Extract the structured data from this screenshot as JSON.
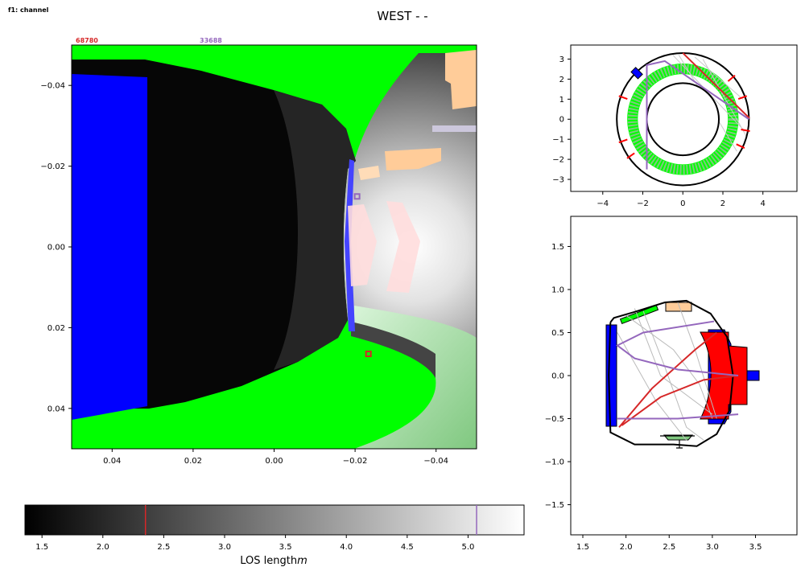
{
  "figure_label": "f1: channel",
  "title": "WEST -  -",
  "colors": {
    "red_marker": "#d62728",
    "purple_marker": "#9467bd",
    "green": "#00ff00",
    "blue": "#0000ff",
    "red": "#ff0000",
    "peach": "#ffcc99",
    "lavender": "#ccc7dc",
    "pink": "#ffdddd",
    "light_green": "#80c880"
  },
  "chart_data": [
    {
      "type": "heatmap",
      "name": "camera image",
      "corner_labels": {
        "red_pixel_index": "68780",
        "purple_pixel_index": "33688"
      },
      "xlim": [
        0.05,
        -0.05
      ],
      "ylim": [
        -0.05,
        0.05
      ],
      "x_ticks": [
        "0.04",
        "0.02",
        "0.00",
        "−0.02",
        "−0.04"
      ],
      "y_ticks": [
        "−0.04",
        "−0.02",
        "0.00",
        "0.02",
        "0.04"
      ],
      "x_tick_values": [
        0.04,
        0.02,
        0.0,
        -0.02,
        -0.04
      ],
      "y_tick_values": [
        -0.04,
        -0.02,
        0.0,
        0.02,
        0.04
      ],
      "markers": [
        {
          "pixel": "33688",
          "x": -0.0205,
          "y": -0.0125,
          "color": "#9467bd"
        },
        {
          "pixel": "68780",
          "x": -0.0233,
          "y": 0.0265,
          "color": "#d62728"
        }
      ],
      "colormap": "greys, black = short LOS, white = long LOS"
    },
    {
      "type": "colorbar",
      "xlim": [
        1.36,
        5.46
      ],
      "ticks": [
        "1.5",
        "2.0",
        "2.5",
        "3.0",
        "3.5",
        "4.0",
        "4.5",
        "5.0"
      ],
      "tick_values": [
        1.5,
        2.0,
        2.5,
        3.0,
        3.5,
        4.0,
        4.5,
        5.0
      ],
      "xlabel": "LOS length",
      "xlabel_unit": "m",
      "markers": [
        {
          "value": 2.35,
          "color": "#d62728"
        },
        {
          "value": 5.07,
          "color": "#9467bd"
        }
      ]
    },
    {
      "type": "line",
      "name": "top view (horizontal cross-section)",
      "xlim": [
        -5.6,
        5.7
      ],
      "ylim": [
        -3.6,
        3.7
      ],
      "x_ticks": [
        "−4",
        "−2",
        "0",
        "2",
        "4"
      ],
      "x_tick_values": [
        -4,
        -2,
        0,
        2,
        4
      ],
      "y_ticks": [
        "−3",
        "−2",
        "−1",
        "0",
        "1",
        "2",
        "3"
      ],
      "y_tick_values": [
        -3,
        -2,
        -1,
        0,
        1,
        2,
        3
      ],
      "vessel": {
        "r_inner": 1.8,
        "r_outer": 3.3
      },
      "green_ring": {
        "r_inner": 2.25,
        "r_outer": 2.78
      },
      "los_red": [
        [
          0.0,
          3.3
        ],
        [
          3.33,
          0.05
        ]
      ],
      "los_purple": [
        [
          -1.8,
          -2.5
        ],
        [
          -1.8,
          2.7
        ],
        [
          -0.9,
          2.9
        ],
        [
          3.3,
          0.0
        ]
      ],
      "los_gray": [
        [
          [
            -0.2,
            3.2
          ],
          [
            2.7,
            -1.6
          ]
        ],
        [
          [
            0.6,
            3.1
          ],
          [
            3.0,
            1.0
          ]
        ],
        [
          [
            -0.5,
            3.2
          ],
          [
            3.1,
            -0.6
          ]
        ],
        [
          [
            1.0,
            3.0
          ],
          [
            3.2,
            -0.9
          ]
        ]
      ],
      "camera": [
        -2.3,
        2.3
      ]
    },
    {
      "type": "line",
      "name": "poloidal cross-section",
      "xlim": [
        1.36,
        3.98
      ],
      "ylim": [
        -1.85,
        1.85
      ],
      "x_ticks": [
        "1.5",
        "2.0",
        "2.5",
        "3.0",
        "3.5"
      ],
      "x_tick_values": [
        1.5,
        2.0,
        2.5,
        3.0,
        3.5
      ],
      "y_ticks": [
        "1.5",
        "1.0",
        "0.5",
        "0.0",
        "−0.5",
        "−1.0",
        "−1.5"
      ],
      "y_tick_values": [
        1.5,
        1.0,
        0.5,
        0.0,
        -0.5,
        -1.0,
        -1.5
      ],
      "vessel": [
        [
          1.82,
          0.62
        ],
        [
          1.86,
          0.67
        ],
        [
          2.1,
          0.74
        ],
        [
          2.45,
          0.85
        ],
        [
          2.7,
          0.87
        ],
        [
          2.98,
          0.72
        ],
        [
          3.17,
          0.45
        ],
        [
          3.24,
          0.0
        ],
        [
          3.2,
          -0.4
        ],
        [
          3.05,
          -0.68
        ],
        [
          2.82,
          -0.82
        ],
        [
          2.55,
          -0.8
        ],
        [
          2.1,
          -0.8
        ],
        [
          1.94,
          -0.72
        ],
        [
          1.82,
          -0.66
        ],
        [
          1.8,
          0.0
        ],
        [
          1.82,
          0.62
        ]
      ],
      "red_lines": [
        [
          [
            1.92,
            -0.6
          ],
          [
            2.3,
            -0.15
          ],
          [
            2.8,
            0.3
          ],
          [
            3.05,
            0.5
          ]
        ],
        [
          [
            1.95,
            -0.58
          ],
          [
            2.4,
            -0.25
          ],
          [
            2.9,
            -0.05
          ],
          [
            3.3,
            0.0
          ]
        ]
      ],
      "purple_lines": [
        [
          [
            3.3,
            0.0
          ],
          [
            2.6,
            0.07
          ],
          [
            2.1,
            0.2
          ],
          [
            1.9,
            0.35
          ],
          [
            2.2,
            0.5
          ],
          [
            3.02,
            0.63
          ]
        ],
        [
          [
            3.3,
            -0.45
          ],
          [
            2.6,
            -0.5
          ],
          [
            1.9,
            -0.5
          ]
        ]
      ],
      "gray_lines": [
        [
          [
            2.0,
            0.7
          ],
          [
            2.55,
            0.3
          ],
          [
            2.85,
            -0.1
          ],
          [
            3.0,
            -0.5
          ]
        ],
        [
          [
            2.2,
            0.75
          ],
          [
            2.45,
            0.1
          ],
          [
            2.7,
            -0.6
          ],
          [
            2.9,
            -0.75
          ]
        ],
        [
          [
            1.9,
            0.5
          ],
          [
            2.35,
            -0.3
          ],
          [
            2.7,
            -0.75
          ]
        ],
        [
          [
            2.6,
            0.85
          ],
          [
            2.8,
            0.3
          ],
          [
            3.05,
            -0.5
          ]
        ],
        [
          [
            2.1,
            0.78
          ],
          [
            2.4,
            0.0
          ],
          [
            3.0,
            -0.45
          ]
        ]
      ]
    }
  ]
}
